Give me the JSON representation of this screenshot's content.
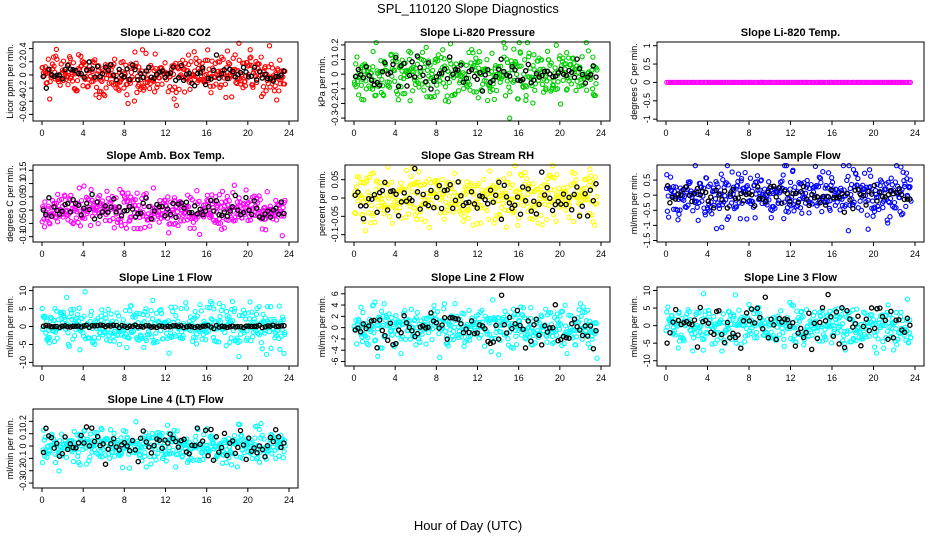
{
  "figure": {
    "title": "SPL_110120  Slope Diagnostics",
    "xlabel": "Hour of Day (UTC)"
  },
  "chart_data": [
    {
      "type": "scatter",
      "title": "Slope Li-820 CO2",
      "ylabel": "Licor ppm per min.",
      "xlim": [
        0,
        24
      ],
      "ylim": [
        -0.7,
        0.5
      ],
      "yticks": [
        -0.6,
        -0.4,
        -0.2,
        0.0,
        0.2,
        0.4
      ],
      "xticks": [
        0,
        4,
        8,
        12,
        16,
        20,
        24
      ],
      "series": [
        {
          "color": "#ff0000",
          "spread": 0.16,
          "n": 420,
          "seed": 11
        },
        {
          "color": "#000000",
          "spread": 0.08,
          "n": 90,
          "seed": 12
        }
      ]
    },
    {
      "type": "scatter",
      "title": "Slope Li-820 Pressure",
      "ylabel": "kPa per min.",
      "xlim": [
        0,
        24
      ],
      "ylim": [
        -0.32,
        0.22
      ],
      "yticks": [
        -0.3,
        -0.2,
        -0.1,
        0.0,
        0.1,
        0.2
      ],
      "xticks": [
        0,
        4,
        8,
        12,
        16,
        20,
        24
      ],
      "series": [
        {
          "color": "#00cc00",
          "spread": 0.09,
          "n": 420,
          "seed": 21
        },
        {
          "color": "#000000",
          "spread": 0.05,
          "n": 90,
          "seed": 22
        }
      ]
    },
    {
      "type": "scatter",
      "title": "Slope Li-820 Temp.",
      "ylabel": "degrees C per min.",
      "xlim": [
        0,
        24
      ],
      "ylim": [
        -1.05,
        1.1
      ],
      "yticks": [
        -1.0,
        -0.5,
        0.0,
        0.5,
        1.0
      ],
      "xticks": [
        0,
        4,
        8,
        12,
        16,
        20,
        24
      ],
      "series": [
        {
          "color": "#ff00ff",
          "spread": 0.0,
          "n": 150,
          "seed": 31,
          "line": true
        }
      ]
    },
    {
      "type": "scatter",
      "title": "Slope Amb. Box Temp.",
      "ylabel": "degrees C per min.",
      "xlim": [
        0,
        24
      ],
      "ylim": [
        -0.12,
        0.17
      ],
      "yticks": [
        -0.1,
        -0.05,
        0.0,
        0.05,
        0.1,
        0.15
      ],
      "xticks": [
        0,
        4,
        8,
        12,
        16,
        20,
        24
      ],
      "series": [
        {
          "color": "#ff00ff",
          "spread": 0.035,
          "n": 420,
          "seed": 41
        },
        {
          "color": "#000000",
          "spread": 0.02,
          "n": 90,
          "seed": 42
        }
      ]
    },
    {
      "type": "scatter",
      "title": "Slope Gas Stream RH",
      "ylabel": "percent per min.",
      "xlim": [
        0,
        24
      ],
      "ylim": [
        -0.12,
        0.09
      ],
      "yticks": [
        -0.1,
        -0.05,
        0.0,
        0.05
      ],
      "xticks": [
        0,
        4,
        8,
        12,
        16,
        20,
        24
      ],
      "series": [
        {
          "color": "#ffff00",
          "spread": 0.035,
          "n": 420,
          "seed": 51
        },
        {
          "color": "#000000",
          "spread": 0.025,
          "n": 90,
          "seed": 52
        }
      ]
    },
    {
      "type": "scatter",
      "title": "Slope Sample Flow",
      "ylabel": "ml/min per min.",
      "xlim": [
        0,
        24
      ],
      "ylim": [
        -1.55,
        1.0
      ],
      "yticks": [
        -1.5,
        -1.0,
        -0.5,
        0.0,
        0.5
      ],
      "xticks": [
        0,
        4,
        8,
        12,
        16,
        20,
        24
      ],
      "series": [
        {
          "color": "#0000ff",
          "spread": 0.4,
          "n": 420,
          "seed": 61
        },
        {
          "color": "#000000",
          "spread": 0.2,
          "n": 90,
          "seed": 62
        }
      ]
    },
    {
      "type": "scatter",
      "title": "Slope Line 1 Flow",
      "ylabel": "ml/min per min.",
      "xlim": [
        0,
        24
      ],
      "ylim": [
        -11,
        11
      ],
      "yticks": [
        -10,
        -5,
        0,
        5,
        10
      ],
      "xticks": [
        0,
        4,
        8,
        12,
        16,
        20,
        24
      ],
      "series": [
        {
          "color": "#00ffff",
          "spread": 3.0,
          "n": 420,
          "seed": 71
        },
        {
          "color": "#000000",
          "spread": 0.2,
          "n": 90,
          "seed": 72
        }
      ]
    },
    {
      "type": "scatter",
      "title": "Slope Line 2 Flow",
      "ylabel": "ml/min per min.",
      "xlim": [
        0,
        24
      ],
      "ylim": [
        -6.8,
        7.2
      ],
      "yticks": [
        -6,
        -4,
        -2,
        0,
        2,
        4,
        6
      ],
      "xticks": [
        0,
        4,
        8,
        12,
        16,
        20,
        24
      ],
      "series": [
        {
          "color": "#00ffff",
          "spread": 1.8,
          "n": 420,
          "seed": 81
        },
        {
          "color": "#000000",
          "spread": 1.8,
          "n": 90,
          "seed": 82
        }
      ]
    },
    {
      "type": "scatter",
      "title": "Slope Line 3 Flow",
      "ylabel": "ml/min per min.",
      "xlim": [
        0,
        24
      ],
      "ylim": [
        -11.5,
        11
      ],
      "yticks": [
        -10,
        -5,
        0,
        5,
        10
      ],
      "xticks": [
        0,
        4,
        8,
        12,
        16,
        20,
        24
      ],
      "series": [
        {
          "color": "#00ffff",
          "spread": 3.0,
          "n": 420,
          "seed": 91
        },
        {
          "color": "#000000",
          "spread": 3.0,
          "n": 90,
          "seed": 92
        }
      ]
    },
    {
      "type": "scatter",
      "title": "Slope Line 4 (LT) Flow",
      "ylabel": "ml/min per min.",
      "xlim": [
        0,
        24
      ],
      "ylim": [
        -0.34,
        0.3
      ],
      "yticks": [
        -0.3,
        -0.2,
        -0.1,
        0.0,
        0.1,
        0.2
      ],
      "xticks": [
        0,
        4,
        8,
        12,
        16,
        20,
        24
      ],
      "series": [
        {
          "color": "#00ffff",
          "spread": 0.07,
          "n": 420,
          "seed": 101
        },
        {
          "color": "#000000",
          "spread": 0.08,
          "n": 90,
          "seed": 102
        }
      ]
    }
  ]
}
